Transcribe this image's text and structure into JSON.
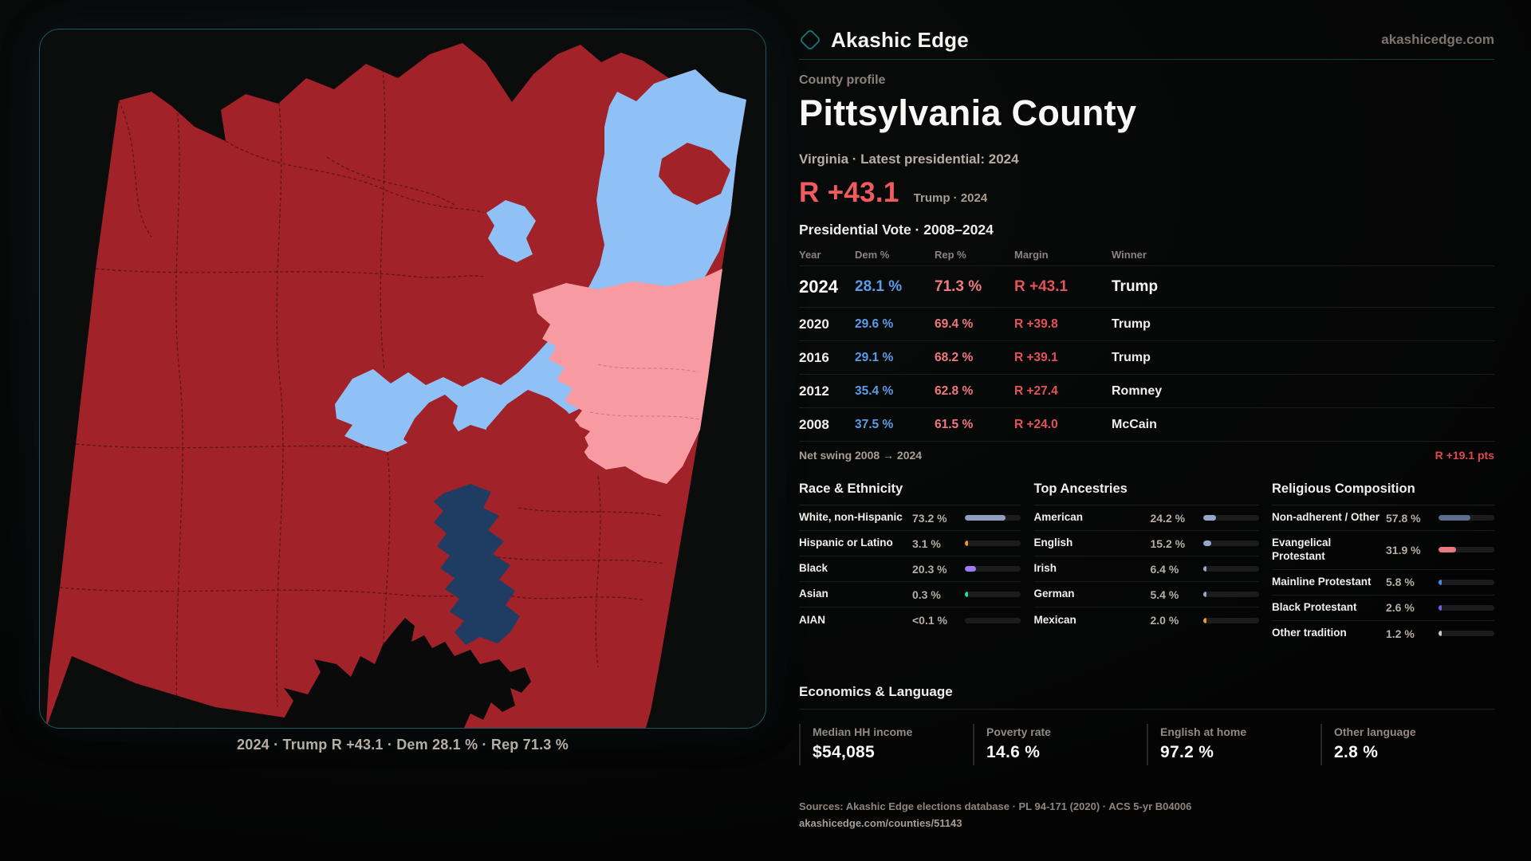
{
  "brand": {
    "name": "Akashic Edge",
    "site": "akashicedge.com"
  },
  "theme": {
    "map_red": "#a12228",
    "map_blue": "#8fc0f6",
    "map_pink": "#f89aa2",
    "map_navy": "#1f3d62",
    "map_black": "#0a0a0a",
    "dem_blue": "#5b9ce8",
    "rep_red": "#f0797d",
    "margin_red": "#e25257",
    "accent_teal": "#1e6b70"
  },
  "header": {
    "kicker": "County profile",
    "title": "Pittsylvania County",
    "subtitle": "Virginia · Latest presidential: 2024",
    "headline_margin": "R +43.1",
    "headline_note": "Trump · 2024"
  },
  "map": {
    "caption": "2024 · Trump R +43.1 · Dem 28.1 % · Rep 71.3 %"
  },
  "table": {
    "title": "Presidential Vote · 2008–2024",
    "columns": [
      "Year",
      "Dem %",
      "Rep %",
      "Margin",
      "Winner"
    ],
    "rows": [
      {
        "year": "2024",
        "dem": "28.1 %",
        "rep": "71.3 %",
        "margin": "R +43.1",
        "winner": "Trump"
      },
      {
        "year": "2020",
        "dem": "29.6 %",
        "rep": "69.4 %",
        "margin": "R +39.8",
        "winner": "Trump"
      },
      {
        "year": "2016",
        "dem": "29.1 %",
        "rep": "68.2 %",
        "margin": "R +39.1",
        "winner": "Trump"
      },
      {
        "year": "2012",
        "dem": "35.4 %",
        "rep": "62.8 %",
        "margin": "R +27.4",
        "winner": "Romney"
      },
      {
        "year": "2008",
        "dem": "37.5 %",
        "rep": "61.5 %",
        "margin": "R +24.0",
        "winner": "McCain"
      }
    ],
    "net_swing_label": "Net swing 2008 → 2024",
    "net_swing_value": "R +19.1 pts"
  },
  "sections": {
    "race": {
      "title": "Race & Ethnicity",
      "items": [
        {
          "label": "White, non-Hispanic",
          "value": "73.2 %",
          "pct": 73.2,
          "color": "#8e9fc0"
        },
        {
          "label": "Hispanic or Latino",
          "value": "3.1 %",
          "pct": 3.1,
          "color": "#e89a2e"
        },
        {
          "label": "Black",
          "value": "20.3 %",
          "pct": 20.3,
          "color": "#9b7df0"
        },
        {
          "label": "Asian",
          "value": "0.3 %",
          "pct": 0.3,
          "color": "#2ed9a3"
        },
        {
          "label": "AIAN",
          "value": "<0.1 %",
          "pct": 0,
          "color": "#8e9fc0"
        }
      ]
    },
    "ancestry": {
      "title": "Top Ancestries",
      "items": [
        {
          "label": "American",
          "value": "24.2 %",
          "pct": 24.2,
          "color": "#93a9c9"
        },
        {
          "label": "English",
          "value": "15.2 %",
          "pct": 15.2,
          "color": "#93a9c9"
        },
        {
          "label": "Irish",
          "value": "6.4 %",
          "pct": 6.4,
          "color": "#93a9c9"
        },
        {
          "label": "German",
          "value": "5.4 %",
          "pct": 5.4,
          "color": "#93a9c9"
        },
        {
          "label": "Mexican",
          "value": "2.0 %",
          "pct": 2.0,
          "color": "#e89a2e"
        }
      ]
    },
    "religion": {
      "title": "Religious Composition",
      "items": [
        {
          "label": "Non-adherent / Other",
          "value": "57.8 %",
          "pct": 57.8,
          "color": "#5b6e8c"
        },
        {
          "label": "Evangelical Protestant",
          "value": "31.9 %",
          "pct": 31.9,
          "color": "#e87a7e"
        },
        {
          "label": "Mainline Protestant",
          "value": "5.8 %",
          "pct": 5.8,
          "color": "#3f8cf2"
        },
        {
          "label": "Black Protestant",
          "value": "2.6 %",
          "pct": 2.6,
          "color": "#7c5cf0"
        },
        {
          "label": "Other tradition",
          "value": "1.2 %",
          "pct": 1.2,
          "color": "#cfc9c4"
        }
      ]
    }
  },
  "economics": {
    "title": "Economics & Language",
    "stats": [
      {
        "label": "Median HH income",
        "value": "$54,085"
      },
      {
        "label": "Poverty rate",
        "value": "14.6 %"
      },
      {
        "label": "English at home",
        "value": "97.2 %"
      },
      {
        "label": "Other language",
        "value": "2.8 %"
      }
    ]
  },
  "footer": {
    "sources": "Sources: Akashic Edge elections database · PL 94-171 (2020) · ACS 5-yr B04006",
    "url": "akashicedge.com/counties/51143"
  }
}
